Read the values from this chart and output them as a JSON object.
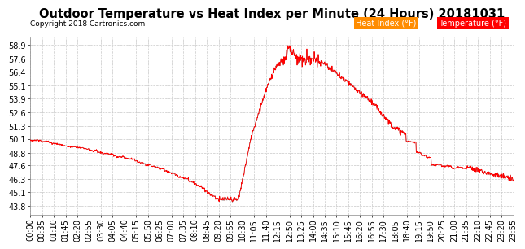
{
  "title": "Outdoor Temperature vs Heat Index per Minute (24 Hours) 20181031",
  "copyright": "Copyright 2018 Cartronics.com",
  "legend_heat_index": "Heat Index (°F)",
  "legend_temperature": "Temperature (°F)",
  "yticks": [
    43.8,
    45.1,
    46.3,
    47.6,
    48.8,
    50.1,
    51.3,
    52.6,
    53.9,
    55.1,
    56.4,
    57.6,
    58.9
  ],
  "ylim": [
    43.0,
    59.6
  ],
  "xtick_labels": [
    "00:00",
    "00:35",
    "01:10",
    "01:45",
    "02:20",
    "02:55",
    "03:30",
    "04:05",
    "04:40",
    "05:15",
    "05:50",
    "06:25",
    "07:00",
    "07:35",
    "08:10",
    "08:45",
    "09:20",
    "09:55",
    "10:30",
    "11:05",
    "11:40",
    "12:15",
    "12:50",
    "13:25",
    "14:00",
    "14:35",
    "15:10",
    "15:45",
    "16:20",
    "16:55",
    "17:30",
    "18:05",
    "18:40",
    "19:15",
    "19:50",
    "20:25",
    "21:00",
    "21:35",
    "22:10",
    "22:45",
    "23:20",
    "23:55"
  ],
  "line_color_heat": "#FF0000",
  "line_color_temp": "#888888",
  "bg_color": "#FFFFFF",
  "grid_color": "#C8C8C8",
  "title_fontsize": 10.5,
  "copyright_fontsize": 6.5,
  "tick_fontsize": 7,
  "legend_bg_heat": "#FF8C00",
  "legend_bg_temp": "#FF0000",
  "legend_text_color": "#FFFFFF"
}
